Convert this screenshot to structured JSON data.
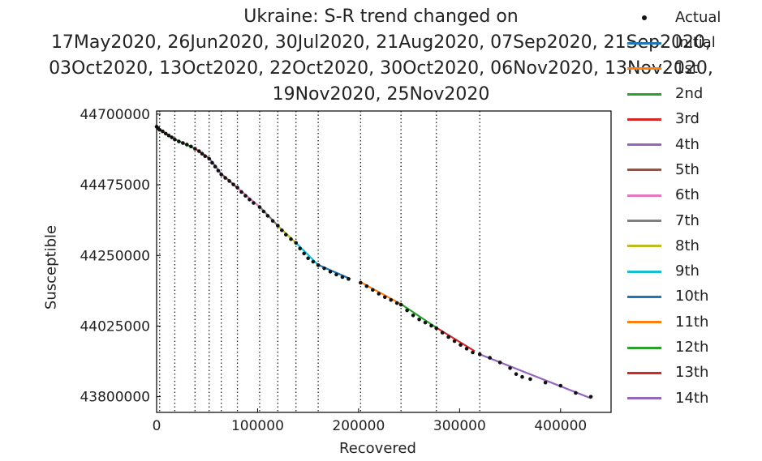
{
  "chart_data": {
    "type": "scatter",
    "title_lines": [
      "Ukraine: S-R trend changed on",
      "17May2020, 26Jun2020, 30Jul2020, 21Aug2020, 07Sep2020, 21Sep2020,",
      "03Oct2020, 13Oct2020, 22Oct2020, 30Oct2020, 06Nov2020, 13Nov2020,",
      "19Nov2020, 25Nov2020"
    ],
    "xlabel": "Recovered",
    "ylabel": "Susceptible",
    "xlim": [
      0,
      450000
    ],
    "ylim": [
      43750000,
      44710000
    ],
    "xticks": [
      0,
      100000,
      200000,
      300000,
      400000
    ],
    "xtick_labels": [
      "0",
      "100000",
      "200000",
      "300000",
      "400000"
    ],
    "yticks": [
      43800000,
      44025000,
      44250000,
      44475000,
      44700000
    ],
    "ytick_labels": [
      "43800000",
      "44025000",
      "44250000",
      "44475000",
      "44700000"
    ],
    "change_points_x": [
      3000,
      18000,
      38000,
      52000,
      64000,
      80000,
      102000,
      120000,
      138000,
      160000,
      202000,
      242000,
      277000,
      320000
    ],
    "legend_position": "right-outside",
    "legend": [
      {
        "name": "Actual",
        "marker": "dot",
        "color": "#111111"
      },
      {
        "name": "Initial",
        "marker": "line",
        "color": "#1f77b4"
      },
      {
        "name": "1st",
        "marker": "line",
        "color": "#ff7f0e"
      },
      {
        "name": "2nd",
        "marker": "line",
        "color": "#2ca02c"
      },
      {
        "name": "3rd",
        "marker": "line",
        "color": "#d62728"
      },
      {
        "name": "4th",
        "marker": "line",
        "color": "#9467bd"
      },
      {
        "name": "5th",
        "marker": "line",
        "color": "#8c564b"
      },
      {
        "name": "6th",
        "marker": "line",
        "color": "#e377c2"
      },
      {
        "name": "7th",
        "marker": "line",
        "color": "#7f7f7f"
      },
      {
        "name": "8th",
        "marker": "line",
        "color": "#bcbd22"
      },
      {
        "name": "9th",
        "marker": "line",
        "color": "#17becf"
      },
      {
        "name": "10th",
        "marker": "line",
        "color": "#1f77b4"
      },
      {
        "name": "11th",
        "marker": "line",
        "color": "#ff7f0e"
      },
      {
        "name": "12th",
        "marker": "line",
        "color": "#2ca02c"
      },
      {
        "name": "13th",
        "marker": "line",
        "color": "#d62728"
      },
      {
        "name": "14th",
        "marker": "line",
        "color": "#9467bd"
      }
    ],
    "trend_lines": [
      {
        "name": "Initial",
        "color": "#1f77b4",
        "x": [
          0,
          3000
        ],
        "y": [
          44655000,
          44652000
        ]
      },
      {
        "name": "1st",
        "color": "#ff7f0e",
        "x": [
          3000,
          18000
        ],
        "y": [
          44652000,
          44620000
        ]
      },
      {
        "name": "2nd",
        "color": "#2ca02c",
        "x": [
          18000,
          38000
        ],
        "y": [
          44620000,
          44590000
        ]
      },
      {
        "name": "3rd",
        "color": "#d62728",
        "x": [
          38000,
          52000
        ],
        "y": [
          44590000,
          44560000
        ]
      },
      {
        "name": "4th",
        "color": "#9467bd",
        "x": [
          52000,
          64000
        ],
        "y": [
          44560000,
          44510000
        ]
      },
      {
        "name": "5th",
        "color": "#8c564b",
        "x": [
          64000,
          80000
        ],
        "y": [
          44510000,
          44465000
        ]
      },
      {
        "name": "6th",
        "color": "#e377c2",
        "x": [
          80000,
          102000
        ],
        "y": [
          44465000,
          44405000
        ]
      },
      {
        "name": "7th",
        "color": "#7f7f7f",
        "x": [
          102000,
          120000
        ],
        "y": [
          44405000,
          44345000
        ]
      },
      {
        "name": "8th",
        "color": "#bcbd22",
        "x": [
          120000,
          138000
        ],
        "y": [
          44345000,
          44290000
        ]
      },
      {
        "name": "9th",
        "color": "#17becf",
        "x": [
          138000,
          160000
        ],
        "y": [
          44290000,
          44220000
        ]
      },
      {
        "name": "10th",
        "color": "#1f77b4",
        "x": [
          160000,
          192000
        ],
        "y": [
          44220000,
          44175000
        ]
      },
      {
        "name": "11th",
        "color": "#ff7f0e",
        "x": [
          202000,
          242000
        ],
        "y": [
          44165000,
          44095000
        ]
      },
      {
        "name": "12th",
        "color": "#2ca02c",
        "x": [
          242000,
          277000
        ],
        "y": [
          44095000,
          44020000
        ]
      },
      {
        "name": "13th",
        "color": "#d62728",
        "x": [
          277000,
          315000
        ],
        "y": [
          44020000,
          43945000
        ]
      },
      {
        "name": "14th",
        "color": "#9467bd",
        "x": [
          320000,
          430000
        ],
        "y": [
          43935000,
          43795000
        ]
      }
    ],
    "actual": {
      "x": [
        0,
        1500,
        3000,
        6000,
        9000,
        12000,
        15000,
        18000,
        22000,
        26000,
        30000,
        34000,
        38000,
        42000,
        45000,
        48000,
        52000,
        55000,
        58000,
        61000,
        64000,
        68000,
        72000,
        76000,
        80000,
        84000,
        88000,
        92000,
        96000,
        102000,
        106000,
        110000,
        115000,
        120000,
        124000,
        128000,
        133000,
        138000,
        142000,
        146000,
        150000,
        155000,
        160000,
        166000,
        172000,
        178000,
        184000,
        190000,
        202000,
        208000,
        214000,
        220000,
        226000,
        232000,
        238000,
        242000,
        248000,
        254000,
        260000,
        266000,
        272000,
        277000,
        283000,
        289000,
        295000,
        301000,
        307000,
        313000,
        320000,
        330000,
        340000,
        350000,
        356000,
        362000,
        370000,
        385000,
        400000,
        415000,
        430000
      ],
      "y": [
        44660000,
        44655000,
        44650000,
        44645000,
        44638000,
        44632000,
        44626000,
        44619000,
        44613000,
        44608000,
        44603000,
        44597000,
        44590000,
        44582000,
        44574000,
        44566000,
        44558000,
        44545000,
        44533000,
        44520000,
        44508000,
        44497000,
        44487000,
        44476000,
        44466000,
        44452000,
        44440000,
        44428000,
        44417000,
        44404000,
        44390000,
        44376000,
        44360000,
        44345000,
        44330000,
        44316000,
        44302000,
        44290000,
        44272000,
        44256000,
        44241000,
        44230000,
        44219000,
        44209000,
        44198000,
        44189000,
        44181000,
        44175000,
        44163000,
        44152000,
        44140000,
        44128000,
        44117000,
        44108000,
        44098000,
        44093000,
        44075000,
        44059000,
        44046000,
        44036000,
        44026000,
        44018000,
        44004000,
        43990000,
        43977000,
        43965000,
        43953000,
        43941000,
        43935000,
        43924000,
        43909000,
        43891000,
        43872000,
        43863000,
        43856000,
        43845000,
        43835000,
        43812000,
        43800000
      ]
    }
  }
}
